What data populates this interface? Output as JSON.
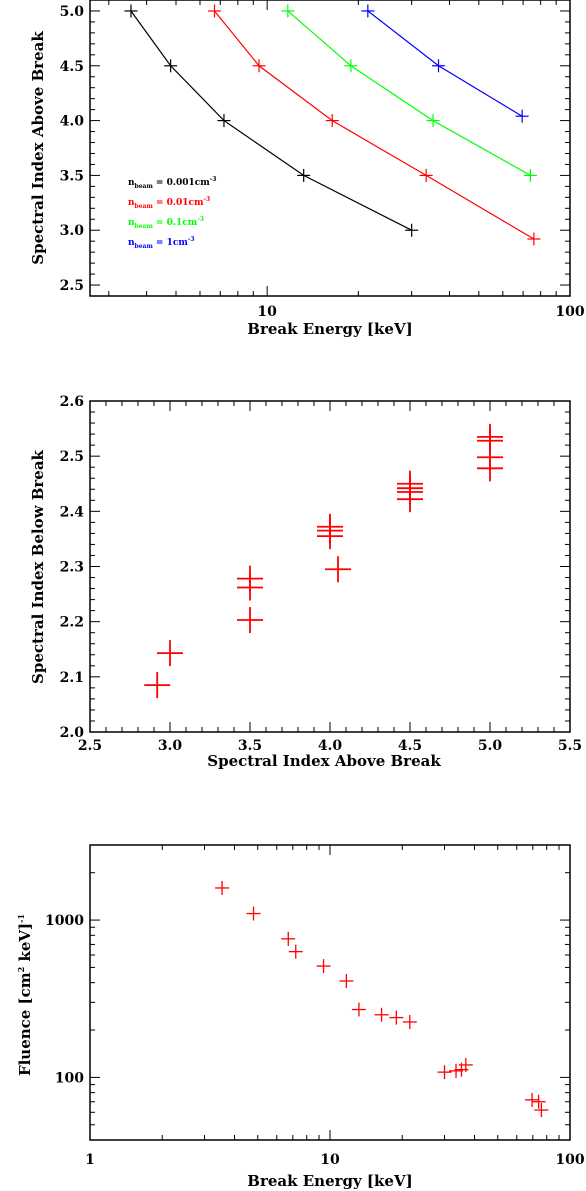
{
  "chart_data": [
    {
      "type": "line",
      "title": "",
      "xlabel": "Break Energy [keV]",
      "ylabel": "Spectral Index Above Break",
      "xscale": "log",
      "xlim": [
        2.6,
        100
      ],
      "ylim": [
        2.4,
        5.1
      ],
      "x_ticks": [
        10,
        100
      ],
      "x_tick_labels": [
        "10",
        "100"
      ],
      "y_ticks": [
        2.5,
        3.0,
        3.5,
        4.0,
        4.5,
        5.0
      ],
      "y_tick_labels": [
        "2.5",
        "3.0",
        "3.5",
        "4.0",
        "4.5",
        "5.0"
      ],
      "grid": false,
      "legend_position": "left",
      "series": [
        {
          "name_main": "n",
          "name_sub": "beam",
          "name_rest": " = 0.001cm",
          "name_sup": "-3",
          "color": "#000000",
          "x": [
            3.55,
            4.8,
            7.2,
            13.2,
            30.0
          ],
          "y": [
            5.0,
            4.5,
            4.0,
            3.5,
            3.0
          ]
        },
        {
          "name_main": "n",
          "name_sub": "beam",
          "name_rest": " = 0.01cm",
          "name_sup": "-3",
          "color": "#ff0000",
          "x": [
            6.7,
            9.4,
            16.4,
            33.5,
            76.0
          ],
          "y": [
            5.0,
            4.5,
            4.0,
            3.5,
            2.92
          ]
        },
        {
          "name_main": "n",
          "name_sub": "beam",
          "name_rest": " = 0.1cm",
          "name_sup": "-3",
          "color": "#00ff00",
          "x": [
            11.7,
            18.9,
            35.3,
            74.0
          ],
          "y": [
            5.0,
            4.5,
            4.0,
            3.5
          ]
        },
        {
          "name_main": "n",
          "name_sub": "beam",
          "name_rest": " = 1cm",
          "name_sup": "-3",
          "color": "#0000ff",
          "x": [
            21.5,
            36.8,
            69.5
          ],
          "y": [
            5.0,
            4.5,
            4.04
          ]
        }
      ]
    },
    {
      "type": "scatter",
      "title": "",
      "xlabel": "Spectral Index Above Break",
      "ylabel": "Spectral Index Below Break",
      "xlim": [
        2.5,
        5.5
      ],
      "ylim": [
        2.0,
        2.6
      ],
      "x_ticks": [
        2.5,
        3.0,
        3.5,
        4.0,
        4.5,
        5.0,
        5.5
      ],
      "x_tick_labels": [
        "2.5",
        "3.0",
        "3.5",
        "4.0",
        "4.5",
        "5.0",
        "5.5"
      ],
      "y_ticks": [
        2.0,
        2.1,
        2.2,
        2.3,
        2.4,
        2.5,
        2.6
      ],
      "y_tick_labels": [
        "2.0",
        "2.1",
        "2.2",
        "2.3",
        "2.4",
        "2.5",
        "2.6"
      ],
      "grid": false,
      "marker": "plus",
      "color": "#ff0000",
      "x": [
        2.92,
        3.0,
        3.5,
        3.5,
        3.5,
        4.0,
        4.0,
        4.0,
        4.05,
        4.5,
        4.5,
        4.5,
        4.5,
        5.0,
        5.0,
        5.0,
        5.0
      ],
      "y": [
        2.085,
        2.143,
        2.203,
        2.262,
        2.278,
        2.355,
        2.365,
        2.372,
        2.295,
        2.422,
        2.435,
        2.442,
        2.45,
        2.478,
        2.498,
        2.528,
        2.535
      ]
    },
    {
      "type": "scatter",
      "title": "",
      "xlabel": "Break Energy [keV]",
      "ylabel_main": "Fluence [cm",
      "ylabel_sup1": "2",
      "ylabel_mid": " keV]",
      "ylabel_sup2": "-1",
      "xscale": "log",
      "yscale": "log",
      "xlim": [
        1,
        100
      ],
      "ylim": [
        40,
        3000
      ],
      "x_ticks": [
        1,
        10,
        100
      ],
      "x_tick_labels": [
        "1",
        "10",
        "100"
      ],
      "y_ticks": [
        100,
        1000
      ],
      "y_tick_labels": [
        "100",
        "1000"
      ],
      "grid": false,
      "marker": "plus",
      "color": "#ff0000",
      "x": [
        3.55,
        4.8,
        6.7,
        7.2,
        9.4,
        11.7,
        13.2,
        16.4,
        18.9,
        21.5,
        30.0,
        33.5,
        35.3,
        36.8,
        69.5,
        74.0,
        76.0
      ],
      "y": [
        1600,
        1100,
        760,
        630,
        510,
        410,
        270,
        250,
        240,
        225,
        108,
        110,
        112,
        120,
        72,
        70,
        62
      ]
    }
  ]
}
